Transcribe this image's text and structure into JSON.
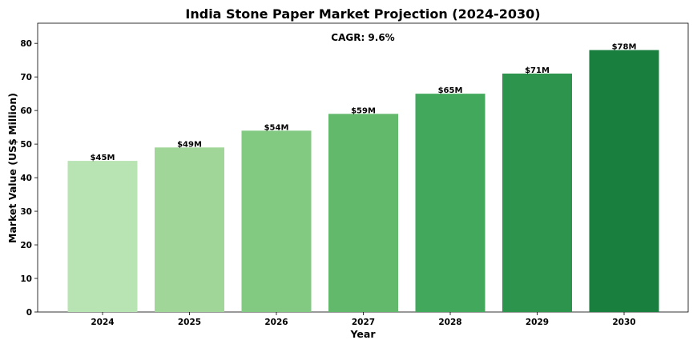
{
  "chart_data": {
    "type": "bar",
    "title": "India Stone Paper Market Projection (2024-2030)",
    "xlabel": "Year",
    "ylabel": "Market Value (US$ Million)",
    "annotation": "CAGR: 9.6%",
    "categories": [
      "2024",
      "2025",
      "2026",
      "2027",
      "2028",
      "2029",
      "2030"
    ],
    "values": [
      45,
      49,
      54,
      59,
      65,
      71,
      78
    ],
    "data_labels": [
      "$45M",
      "$49M",
      "$54M",
      "$59M",
      "$65M",
      "$71M",
      "$78M"
    ],
    "colors": [
      "#b8e3b2",
      "#a0d698",
      "#82ca81",
      "#62b96c",
      "#42a85b",
      "#2d944e",
      "#197f3e"
    ],
    "ylim": [
      0,
      86
    ],
    "yticks": [
      0,
      10,
      20,
      30,
      40,
      50,
      60,
      70,
      80
    ],
    "grid": false,
    "legend": "none"
  }
}
